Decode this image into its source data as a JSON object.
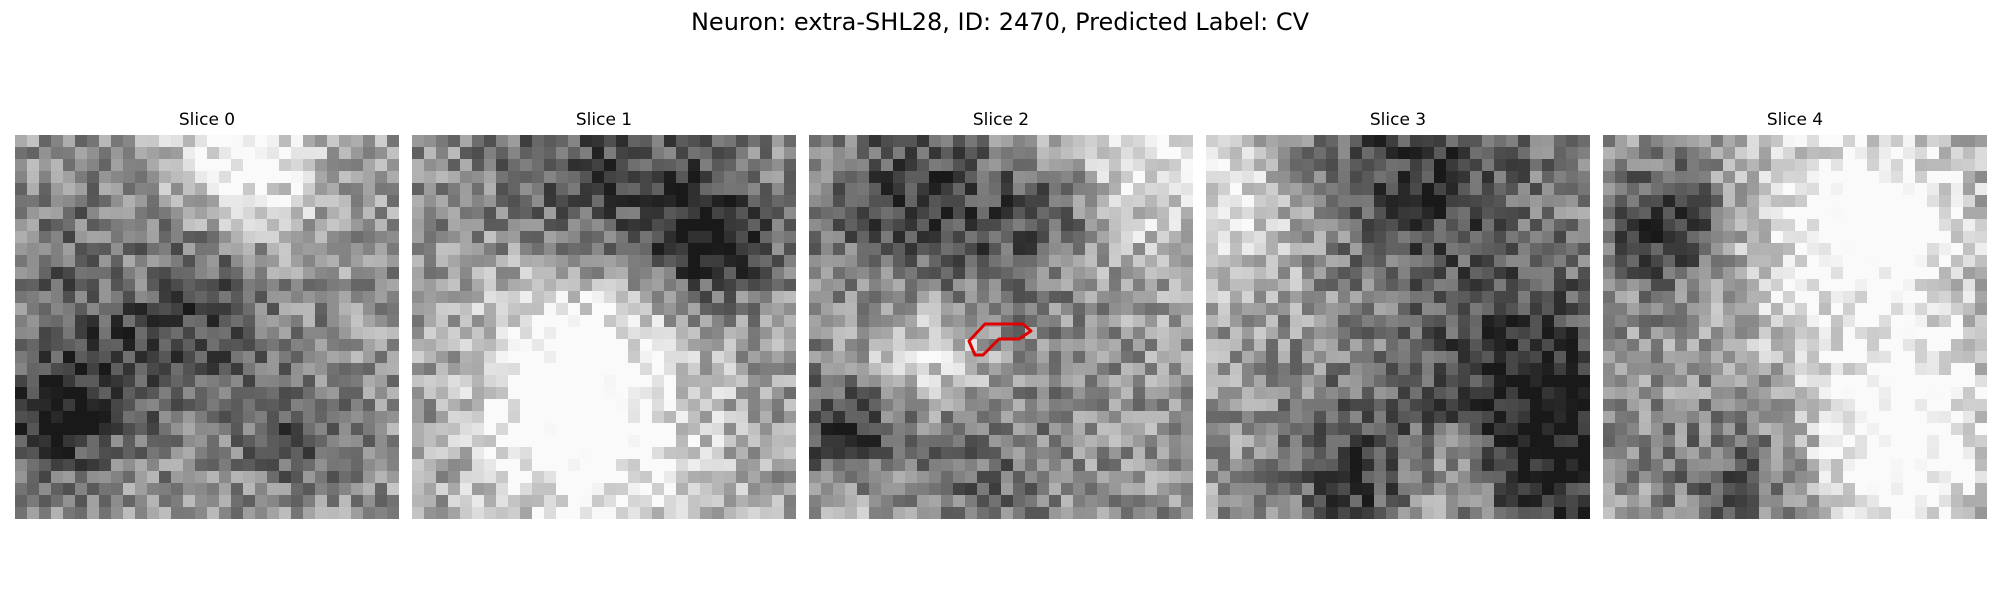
{
  "figure": {
    "title": "Neuron: extra-SHL28, ID: 2470, Predicted Label: CV"
  },
  "colormap": "gray",
  "roi_color": "#e00000",
  "panels": [
    {
      "title": "Slice 0",
      "seed": 11,
      "roi": false
    },
    {
      "title": "Slice 1",
      "seed": 23,
      "roi": false
    },
    {
      "title": "Slice 2",
      "seed": 37,
      "roi": true
    },
    {
      "title": "Slice 3",
      "seed": 41,
      "roi": false
    },
    {
      "title": "Slice 4",
      "seed": 59,
      "roi": false
    }
  ]
}
